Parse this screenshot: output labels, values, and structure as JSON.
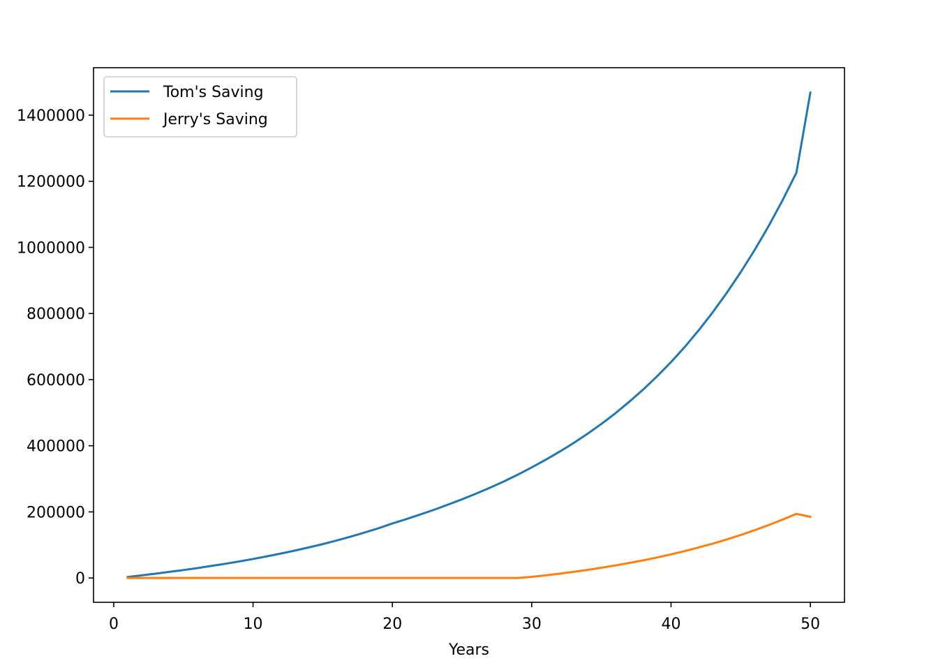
{
  "chart_data": {
    "type": "line",
    "title": "",
    "xlabel": "Years",
    "ylabel": "",
    "xlim": [
      -1.45,
      52.45
    ],
    "ylim": [
      -73500,
      1543500
    ],
    "xticks": [
      0,
      10,
      20,
      30,
      40,
      50
    ],
    "yticks": [
      0,
      200000,
      400000,
      600000,
      800000,
      1000000,
      1200000,
      1400000
    ],
    "xtick_labels": [
      "0",
      "10",
      "20",
      "30",
      "40",
      "50"
    ],
    "ytick_labels": [
      "0",
      "200000",
      "400000",
      "600000",
      "800000",
      "1000000",
      "1200000",
      "1400000"
    ],
    "grid": false,
    "legend_position": "top-left",
    "x": [
      1,
      2,
      3,
      4,
      5,
      6,
      7,
      8,
      9,
      10,
      11,
      12,
      13,
      14,
      15,
      16,
      17,
      18,
      19,
      20,
      21,
      22,
      23,
      24,
      25,
      26,
      27,
      28,
      29,
      30,
      31,
      32,
      33,
      34,
      35,
      36,
      37,
      38,
      39,
      40,
      41,
      42,
      43,
      44,
      45,
      46,
      47,
      48,
      49,
      50
    ],
    "series": [
      {
        "name": "Tom's Saving",
        "color": "#1f77b4",
        "values": [
          3000,
          8000,
          13000,
          18500,
          24000,
          30000,
          36500,
          43000,
          50000,
          57500,
          65500,
          74000,
          83000,
          92500,
          102500,
          113500,
          125000,
          137500,
          150500,
          165000,
          178000,
          192000,
          206500,
          222000,
          238000,
          255000,
          273000,
          292000,
          312500,
          334500,
          357500,
          382000,
          408000,
          436000,
          466000,
          498000,
          533000,
          570000,
          610000,
          653000,
          699500,
          750000,
          804000,
          862500,
          925000,
          992000,
          1064000,
          1142000,
          1226000,
          1468000
        ]
      },
      {
        "name": "Jerry's Saving",
        "color": "#ff7f0e",
        "values": [
          0,
          0,
          0,
          0,
          0,
          0,
          0,
          0,
          0,
          0,
          0,
          0,
          0,
          0,
          0,
          0,
          0,
          0,
          0,
          0,
          0,
          0,
          0,
          0,
          0,
          0,
          0,
          0,
          0,
          3500,
          8000,
          13000,
          18500,
          24500,
          31000,
          38000,
          45500,
          53500,
          62000,
          71500,
          81500,
          92500,
          104000,
          116500,
          130000,
          144500,
          160000,
          176500,
          194000,
          185000
        ]
      }
    ]
  }
}
